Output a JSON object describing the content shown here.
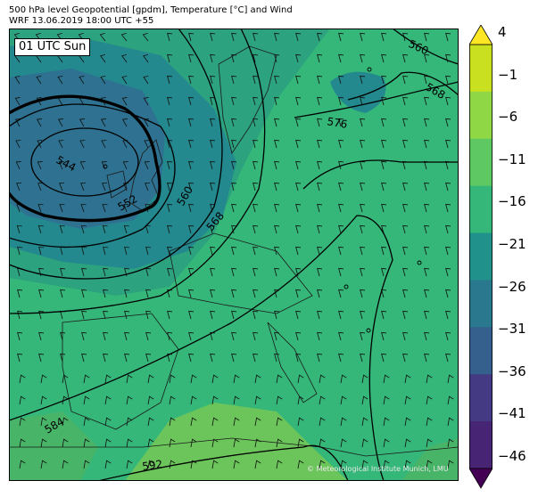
{
  "header": {
    "title": "500 hPa level Geopotential [gpdm], Temperature [°C] and Wind",
    "subtitle": "WRF 13.06.2019 18:00 UTC +55"
  },
  "map": {
    "valid_time_label": "01 UTC Sun",
    "credit": "© Meteorological Institute Munich, LMU",
    "contour_labels": [
      "544",
      "552",
      "560",
      "560",
      "568",
      "568",
      "576",
      "584",
      "592"
    ],
    "bold_contour_value": "552"
  },
  "colorbar": {
    "ticks": [
      "4",
      "−1",
      "−6",
      "−11",
      "−16",
      "−21",
      "−26",
      "−31",
      "−36",
      "−41",
      "−46"
    ],
    "colors": [
      "#fde725",
      "#c8e020",
      "#8fd744",
      "#5ec962",
      "#35b779",
      "#21918c",
      "#2a788e",
      "#355f8d",
      "#443983",
      "#482475",
      "#440154"
    ]
  },
  "colors": {
    "cold_core": "#2e7190",
    "cool": "#23898e",
    "mid": "#2ca27e",
    "warm": "#48b468",
    "warmest": "#6cc55a"
  }
}
